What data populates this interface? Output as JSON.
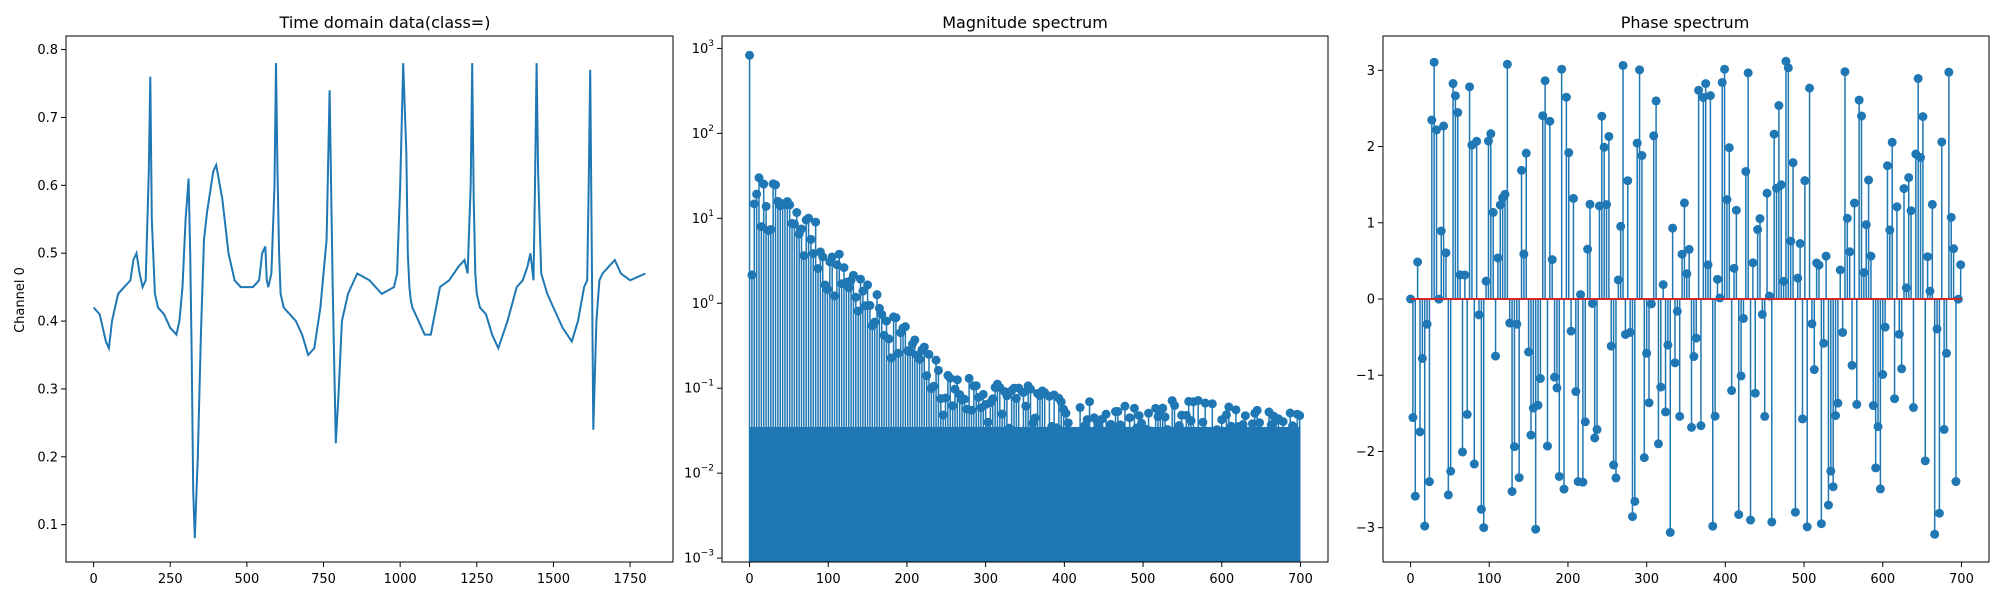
{
  "chart_data": [
    {
      "type": "line",
      "title": "Time domain data(class=)",
      "xlabel": "",
      "ylabel": "Channel 0",
      "xlim": [
        -90,
        1890
      ],
      "ylim": [
        0.045,
        0.82
      ],
      "xticks": [
        0,
        250,
        500,
        750,
        1000,
        1250,
        1500,
        1750
      ],
      "xtick_labels": [
        "0",
        "250",
        "500",
        "750",
        "1000",
        "1250",
        "1500",
        "1750"
      ],
      "yticks": [
        0.1,
        0.2,
        0.3,
        0.4,
        0.5,
        0.6,
        0.7,
        0.8
      ],
      "ytick_labels": [
        "0.1",
        "0.2",
        "0.3",
        "0.4",
        "0.5",
        "0.6",
        "0.7",
        "0.8"
      ],
      "grid": false,
      "color": "#1f77b4",
      "series": [
        {
          "x": [
            0,
            20,
            40,
            50,
            60,
            80,
            100,
            120,
            130,
            140,
            150,
            160,
            170,
            180,
            185,
            190,
            200,
            210,
            230,
            250,
            270,
            280,
            290,
            300,
            310,
            315,
            320,
            325,
            330,
            340,
            350,
            360,
            370,
            380,
            390,
            400,
            420,
            440,
            460,
            480,
            500,
            520,
            540,
            550,
            560,
            565,
            570,
            580,
            590,
            595,
            600,
            605,
            610,
            620,
            640,
            660,
            680,
            700,
            720,
            740,
            760,
            770,
            780,
            790,
            800,
            810,
            830,
            860,
            900,
            940,
            980,
            990,
            1000,
            1010,
            1020,
            1025,
            1030,
            1035,
            1040,
            1050,
            1060,
            1080,
            1100,
            1130,
            1160,
            1190,
            1210,
            1220,
            1230,
            1235,
            1240,
            1245,
            1250,
            1260,
            1280,
            1300,
            1320,
            1350,
            1380,
            1400,
            1415,
            1425,
            1435,
            1440,
            1445,
            1450,
            1460,
            1480,
            1500,
            1530,
            1560,
            1580,
            1600,
            1610,
            1615,
            1620,
            1625,
            1630,
            1640,
            1650,
            1660,
            1680,
            1700,
            1720,
            1750,
            1800
          ],
          "y": [
            0.42,
            0.41,
            0.37,
            0.36,
            0.4,
            0.44,
            0.45,
            0.46,
            0.49,
            0.5,
            0.47,
            0.45,
            0.46,
            0.62,
            0.76,
            0.55,
            0.44,
            0.42,
            0.41,
            0.39,
            0.38,
            0.4,
            0.45,
            0.55,
            0.61,
            0.5,
            0.35,
            0.15,
            0.08,
            0.2,
            0.38,
            0.52,
            0.56,
            0.59,
            0.62,
            0.63,
            0.58,
            0.5,
            0.46,
            0.45,
            0.45,
            0.45,
            0.46,
            0.5,
            0.51,
            0.46,
            0.45,
            0.47,
            0.6,
            0.78,
            0.62,
            0.5,
            0.44,
            0.42,
            0.41,
            0.4,
            0.38,
            0.35,
            0.36,
            0.42,
            0.52,
            0.74,
            0.45,
            0.22,
            0.3,
            0.4,
            0.44,
            0.47,
            0.46,
            0.44,
            0.45,
            0.47,
            0.6,
            0.78,
            0.65,
            0.5,
            0.45,
            0.43,
            0.42,
            0.41,
            0.4,
            0.38,
            0.38,
            0.45,
            0.46,
            0.48,
            0.49,
            0.47,
            0.6,
            0.78,
            0.58,
            0.47,
            0.44,
            0.42,
            0.41,
            0.38,
            0.36,
            0.4,
            0.45,
            0.46,
            0.48,
            0.5,
            0.46,
            0.6,
            0.78,
            0.62,
            0.47,
            0.44,
            0.42,
            0.39,
            0.37,
            0.4,
            0.45,
            0.46,
            0.6,
            0.77,
            0.5,
            0.24,
            0.4,
            0.46,
            0.47,
            0.48,
            0.49,
            0.47,
            0.46,
            0.47
          ]
        }
      ]
    },
    {
      "type": "bar",
      "title": "Magnitude spectrum",
      "xlabel": "",
      "ylabel": "",
      "yscale": "log",
      "xlim": [
        -35,
        735
      ],
      "ylim": [
        0.0009,
        1400
      ],
      "xticks": [
        0,
        100,
        200,
        300,
        400,
        500,
        600,
        700
      ],
      "xtick_labels": [
        "0",
        "100",
        "200",
        "300",
        "400",
        "500",
        "600",
        "700"
      ],
      "yticks": [
        0.001,
        0.01,
        0.1,
        1,
        10,
        100,
        1000
      ],
      "ytick_labels": [
        {
          "base": "10",
          "exp": "−3"
        },
        {
          "base": "10",
          "exp": "−2"
        },
        {
          "base": "10",
          "exp": "−1"
        },
        {
          "base": "10",
          "exp": "0"
        },
        {
          "base": "10",
          "exp": "1"
        },
        {
          "base": "10",
          "exp": "2"
        },
        {
          "base": "10",
          "exp": "3"
        }
      ],
      "grid": false,
      "color": "#1f77b4",
      "envelope": {
        "x": [
          0,
          2,
          5,
          10,
          20,
          40,
          60,
          80,
          100,
          120,
          150,
          180,
          200,
          220,
          250,
          300,
          350,
          400,
          450,
          500,
          550,
          600,
          650,
          700
        ],
        "y": [
          830,
          3,
          12,
          30,
          25,
          22,
          12,
          10,
          4,
          3.5,
          1.5,
          0.9,
          0.5,
          0.3,
          0.15,
          0.12,
          0.1,
          0.07,
          0.06,
          0.06,
          0.07,
          0.06,
          0.05,
          0.05
        ]
      }
    },
    {
      "type": "bar",
      "title": "Phase spectrum",
      "xlabel": "",
      "ylabel": "",
      "xlim": [
        -35,
        735
      ],
      "ylim": [
        -3.45,
        3.45
      ],
      "xticks": [
        0,
        100,
        200,
        300,
        400,
        500,
        600,
        700
      ],
      "xtick_labels": [
        "0",
        "100",
        "200",
        "300",
        "400",
        "500",
        "600",
        "700"
      ],
      "yticks": [
        -3,
        -2,
        -1,
        0,
        1,
        2,
        3
      ],
      "ytick_labels": [
        "−3",
        "−2",
        "−1",
        "0",
        "1",
        "2",
        "3"
      ],
      "grid": false,
      "color": "#1f77b4",
      "baseline_color": "#d62728",
      "values_range": [
        -3.14,
        3.14
      ]
    }
  ]
}
